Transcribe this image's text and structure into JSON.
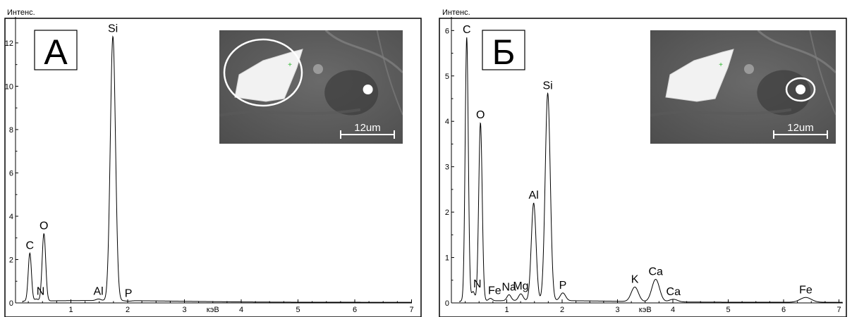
{
  "chart_data": [
    {
      "type": "line",
      "panel_label": "А",
      "ylabel": "Интенс.",
      "xlabel": "кэВ",
      "xlim": [
        0,
        7.3
      ],
      "ylim": [
        0,
        13.2
      ],
      "xticks": [
        "1",
        "2",
        "3",
        "4",
        "5",
        "6",
        "7"
      ],
      "yticks": [
        "0",
        "2",
        "4",
        "6",
        "8",
        "10",
        "12"
      ],
      "peaks": [
        {
          "label": "C",
          "x": 0.277,
          "y": 2.3
        },
        {
          "label": "N",
          "x": 0.392,
          "y": 0.18
        },
        {
          "label": "O",
          "x": 0.525,
          "y": 3.2
        },
        {
          "label": "Al",
          "x": 1.486,
          "y": 0.18
        },
        {
          "label": "Si",
          "x": 1.74,
          "y": 12.3
        },
        {
          "label": "P",
          "x": 2.013,
          "y": 0.08
        }
      ],
      "inset": {
        "scale_label": "12um",
        "highlight": "particle"
      }
    },
    {
      "type": "line",
      "panel_label": "Б",
      "ylabel": "Интенс.",
      "xlabel": "кэВ",
      "xlim": [
        0,
        7.3
      ],
      "ylim": [
        0,
        6.3
      ],
      "xticks": [
        "1",
        "2",
        "3",
        "4",
        "5",
        "6",
        "7"
      ],
      "yticks": [
        "0",
        "1",
        "2",
        "3",
        "4",
        "5",
        "6"
      ],
      "peaks": [
        {
          "label": "C",
          "x": 0.277,
          "y": 5.85
        },
        {
          "label": "N",
          "x": 0.392,
          "y": 0.25
        },
        {
          "label": "O",
          "x": 0.525,
          "y": 3.97
        },
        {
          "label": "Fe",
          "x": 0.705,
          "y": 0.1
        },
        {
          "label": "Na",
          "x": 1.041,
          "y": 0.18
        },
        {
          "label": "Mg",
          "x": 1.254,
          "y": 0.2
        },
        {
          "label": "Al",
          "x": 1.486,
          "y": 2.2
        },
        {
          "label": "Si",
          "x": 1.74,
          "y": 4.62
        },
        {
          "label": "P",
          "x": 2.013,
          "y": 0.22
        },
        {
          "label": "K",
          "x": 3.313,
          "y": 0.35
        },
        {
          "label": "Ca",
          "x": 3.69,
          "y": 0.52
        },
        {
          "label": "Ca",
          "x": 4.01,
          "y": 0.08
        },
        {
          "label": "Fe",
          "x": 6.4,
          "y": 0.12
        }
      ],
      "inset": {
        "scale_label": "12um",
        "highlight": "spot"
      }
    }
  ]
}
